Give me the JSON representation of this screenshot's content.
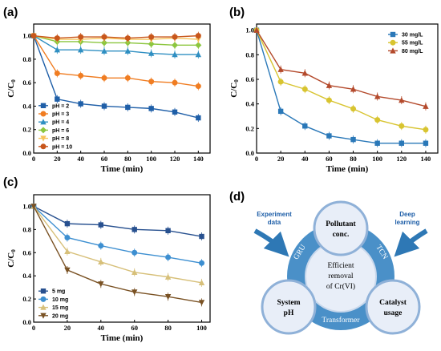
{
  "panels": [
    {
      "label": "(a)",
      "chart_data": {
        "type": "line",
        "xlabel": "Time (min)",
        "ylabel": "C/C",
        "ylabel_sub": "0",
        "xlim": [
          0,
          150
        ],
        "ylim": [
          0,
          1.1
        ],
        "xticks": [
          0,
          20,
          40,
          60,
          80,
          100,
          120,
          140
        ],
        "yticks": [
          0.0,
          0.2,
          0.4,
          0.6,
          0.8,
          1.0
        ],
        "xtick_labels": [
          "0",
          "20",
          "40",
          "60",
          "80",
          "100",
          "120",
          "140"
        ],
        "ytick_labels": [
          "0.0",
          "0.2",
          "0.4",
          "0.6",
          "0.8",
          "1.0"
        ],
        "x": [
          0,
          20,
          40,
          60,
          80,
          100,
          120,
          140
        ],
        "legend": "bottom-left",
        "series": [
          {
            "name": "pH = 2",
            "color": "#1f5fa8",
            "marker": "square",
            "values": [
              1.0,
              0.46,
              0.42,
              0.4,
              0.39,
              0.38,
              0.35,
              0.3
            ]
          },
          {
            "name": "pH = 3",
            "color": "#f07d22",
            "marker": "circle",
            "values": [
              1.0,
              0.68,
              0.66,
              0.64,
              0.64,
              0.61,
              0.6,
              0.57
            ]
          },
          {
            "name": "pH = 4",
            "color": "#2f8fc2",
            "marker": "triangle",
            "values": [
              1.0,
              0.88,
              0.88,
              0.87,
              0.87,
              0.85,
              0.84,
              0.84
            ]
          },
          {
            "name": "pH = 6",
            "color": "#8cc63f",
            "marker": "diamond",
            "values": [
              1.0,
              0.95,
              0.95,
              0.94,
              0.94,
              0.93,
              0.92,
              0.92
            ]
          },
          {
            "name": "pH = 8",
            "color": "#f7c35a",
            "marker": "triangle-down",
            "values": [
              1.0,
              0.97,
              0.97,
              0.98,
              0.97,
              0.97,
              0.98,
              0.97
            ]
          },
          {
            "name": "pH = 10",
            "color": "#c8561b",
            "marker": "circle",
            "values": [
              1.0,
              0.98,
              0.99,
              0.99,
              0.98,
              0.99,
              0.99,
              1.0
            ]
          }
        ]
      }
    },
    {
      "label": "(b)",
      "chart_data": {
        "type": "line",
        "xlabel": "Time (min)",
        "ylabel": "C/C",
        "ylabel_sub": "0",
        "xlim": [
          0,
          150
        ],
        "ylim": [
          0,
          1.05
        ],
        "xticks": [
          0,
          20,
          40,
          60,
          80,
          100,
          120,
          140
        ],
        "yticks": [
          0.0,
          0.2,
          0.4,
          0.6,
          0.8,
          1.0
        ],
        "xtick_labels": [
          "0",
          "20",
          "40",
          "60",
          "80",
          "100",
          "120",
          "140"
        ],
        "ytick_labels": [
          "0.0",
          "0.2",
          "0.4",
          "0.6",
          "0.8",
          "1.0"
        ],
        "x": [
          0,
          20,
          40,
          60,
          80,
          100,
          120,
          140
        ],
        "legend": "top-right",
        "series": [
          {
            "name": "30 mg/L",
            "color": "#2a78b8",
            "marker": "square",
            "values": [
              1.0,
              0.34,
              0.22,
              0.14,
              0.11,
              0.08,
              0.08,
              0.08
            ]
          },
          {
            "name": "55 mg/L",
            "color": "#d8c430",
            "marker": "circle",
            "values": [
              1.0,
              0.58,
              0.52,
              0.43,
              0.36,
              0.27,
              0.22,
              0.19
            ]
          },
          {
            "name": "80 mg/L",
            "color": "#b44a2c",
            "marker": "triangle",
            "values": [
              1.0,
              0.68,
              0.65,
              0.55,
              0.52,
              0.46,
              0.43,
              0.38
            ]
          }
        ]
      }
    },
    {
      "label": "(c)",
      "chart_data": {
        "type": "line",
        "xlabel": "Time (min)",
        "ylabel": "C/C",
        "ylabel_sub": "0",
        "xlim": [
          0,
          105
        ],
        "ylim": [
          0,
          1.1
        ],
        "xticks": [
          0,
          20,
          40,
          60,
          80,
          100
        ],
        "yticks": [
          0.0,
          0.2,
          0.4,
          0.6,
          0.8,
          1.0
        ],
        "xtick_labels": [
          "0",
          "20",
          "40",
          "60",
          "80",
          "100"
        ],
        "ytick_labels": [
          "0.0",
          "0.2",
          "0.4",
          "0.6",
          "0.8",
          "1.0"
        ],
        "x": [
          0,
          20,
          40,
          60,
          80,
          100
        ],
        "legend": "bottom-left",
        "series": [
          {
            "name": "5 mg",
            "color": "#27508f",
            "marker": "square",
            "values": [
              1.0,
              0.85,
              0.84,
              0.8,
              0.79,
              0.74
            ]
          },
          {
            "name": "10 mg",
            "color": "#3d8fd1",
            "marker": "circle",
            "values": [
              1.0,
              0.73,
              0.66,
              0.6,
              0.56,
              0.51
            ]
          },
          {
            "name": "15 mg",
            "color": "#d7c07a",
            "marker": "triangle",
            "values": [
              1.0,
              0.61,
              0.52,
              0.43,
              0.39,
              0.34
            ]
          },
          {
            "name": "20 mg",
            "color": "#7a5224",
            "marker": "triangle-down",
            "values": [
              1.0,
              0.45,
              0.33,
              0.26,
              0.22,
              0.17
            ]
          }
        ]
      }
    }
  ],
  "diagram": {
    "label": "(d)",
    "center_line1": "Efficient",
    "center_line2": "removal",
    "center_line3": "of Cr(VI)",
    "node_top_line1": "Pollutant",
    "node_top_line2": "conc.",
    "node_left_line1": "System",
    "node_left_line2": "pH",
    "node_right_line1": "Catalyst",
    "node_right_line2": "usage",
    "ring_left": "GRU",
    "ring_right": "TCN",
    "ring_bottom": "Transformer",
    "input_left_line1": "Experiment",
    "input_left_line2": "data",
    "input_right_line1": "Deep",
    "input_right_line2": "learning",
    "colors": {
      "ring": "#4a90c8",
      "node_fill": "#e8eef8",
      "node_stroke": "#8fb1d8",
      "arrow": "#2e78b5",
      "text_blue": "#1f5fa8"
    }
  }
}
